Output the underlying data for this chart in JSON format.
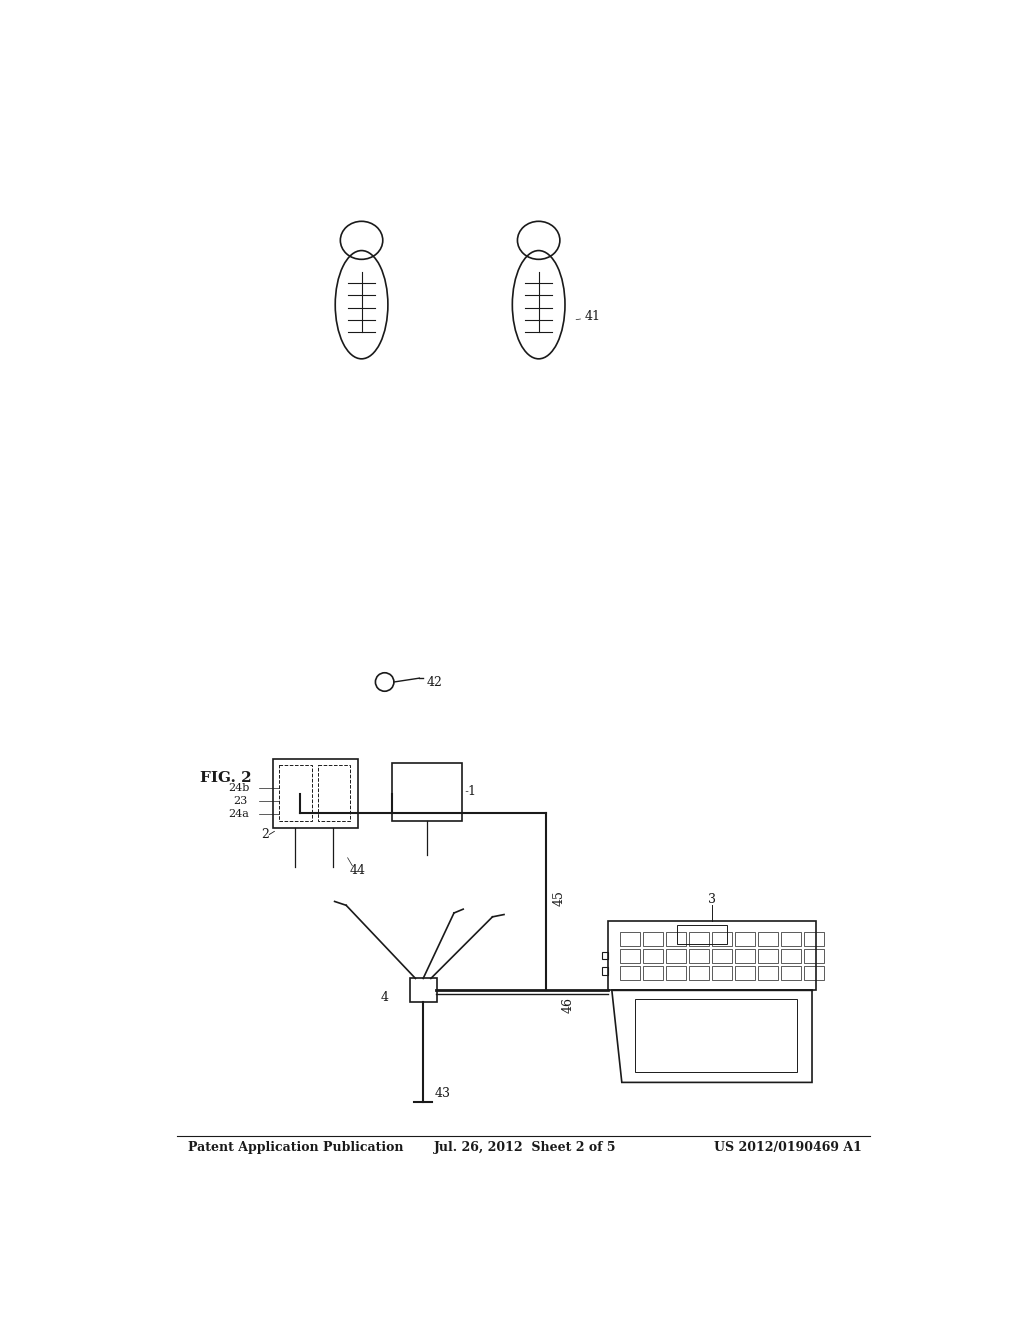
{
  "background_color": "#ffffff",
  "header_left": "Patent Application Publication",
  "header_center": "Jul. 26, 2012  Sheet 2 of 5",
  "header_right": "US 2012/0190469 A1",
  "fig_label": "FIG. 2",
  "line_color": "#1a1a1a"
}
